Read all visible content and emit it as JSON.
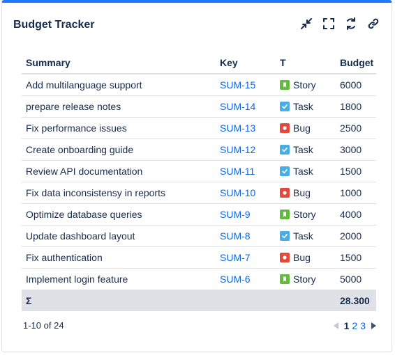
{
  "gadget": {
    "title": "Budget Tracker",
    "actions": [
      {
        "name": "minimize-icon"
      },
      {
        "name": "fullscreen-icon"
      },
      {
        "name": "refresh-icon"
      },
      {
        "name": "link-icon"
      }
    ]
  },
  "table": {
    "headers": [
      "Summary",
      "Key",
      "T",
      "Budget"
    ],
    "rows": [
      {
        "summary": "Add multilanguage support",
        "key": "SUM-15",
        "type": "Story",
        "budget": "6000"
      },
      {
        "summary": "prepare release notes",
        "key": "SUM-14",
        "type": "Task",
        "budget": "1800"
      },
      {
        "summary": "Fix performance issues",
        "key": "SUM-13",
        "type": "Bug",
        "budget": "2500"
      },
      {
        "summary": "Create onboarding guide",
        "key": "SUM-12",
        "type": "Task",
        "budget": "3000"
      },
      {
        "summary": "Review API documentation",
        "key": "SUM-11",
        "type": "Task",
        "budget": "1500"
      },
      {
        "summary": "Fix data inconsistensy in reports",
        "key": "SUM-10",
        "type": "Bug",
        "budget": "1000"
      },
      {
        "summary": "Optimize database queries",
        "key": "SUM-9",
        "type": "Story",
        "budget": "4000"
      },
      {
        "summary": "Update dashboard layout",
        "key": "SUM-8",
        "type": "Task",
        "budget": "2000"
      },
      {
        "summary": "Fix authentication",
        "key": "SUM-7",
        "type": "Bug",
        "budget": "1500"
      },
      {
        "summary": "Implement login feature",
        "key": "SUM-6",
        "type": "Story",
        "budget": "5000"
      }
    ],
    "total_label": "Σ",
    "total_value": "28.300"
  },
  "footer": {
    "range": "1-10 of 24",
    "pages": [
      "1",
      "2",
      "3"
    ],
    "current_page": "1"
  },
  "colors": {
    "accent": "#1d7afc",
    "link": "#0c66e4",
    "story": "#63ba3c",
    "task": "#4bade8",
    "bug": "#e5493a"
  }
}
